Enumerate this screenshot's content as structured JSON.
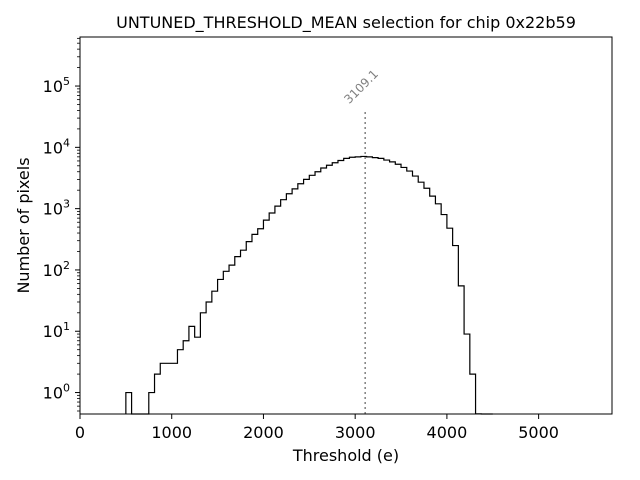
{
  "chart_data": {
    "type": "histogram",
    "title": "UNTUNED_THRESHOLD_MEAN selection for chip 0x22b59",
    "xlabel": "Threshold (e)",
    "ylabel": "Number of pixels",
    "xlim": [
      0,
      5800
    ],
    "ylog_lim": [
      -0.35,
      5.8
    ],
    "x_ticks": [
      {
        "value": 0,
        "label": "0"
      },
      {
        "value": 1000,
        "label": "1000"
      },
      {
        "value": 2000,
        "label": "2000"
      },
      {
        "value": 3000,
        "label": "3000"
      },
      {
        "value": 4000,
        "label": "4000"
      },
      {
        "value": 5000,
        "label": "5000"
      }
    ],
    "y_ticks": [
      {
        "exp": 0,
        "base": "10",
        "sup": "0"
      },
      {
        "exp": 1,
        "base": "10",
        "sup": "1"
      },
      {
        "exp": 2,
        "base": "10",
        "sup": "2"
      },
      {
        "exp": 3,
        "base": "10",
        "sup": "3"
      },
      {
        "exp": 4,
        "base": "10",
        "sup": "4"
      },
      {
        "exp": 5,
        "base": "10",
        "sup": "5"
      }
    ],
    "bin_width": 62.5,
    "bin_starts": [
      500,
      562.5,
      625,
      687.5,
      750,
      812.5,
      875,
      937.5,
      1000,
      1062.5,
      1125,
      1187.5,
      1250,
      1312.5,
      1375,
      1437.5,
      1500,
      1562.5,
      1625,
      1687.5,
      1750,
      1812.5,
      1875,
      1937.5,
      2000,
      2062.5,
      2125,
      2187.5,
      2250,
      2312.5,
      2375,
      2437.5,
      2500,
      2562.5,
      2625,
      2687.5,
      2750,
      2812.5,
      2875,
      2937.5,
      3000,
      3062.5,
      3125,
      3187.5,
      3250,
      3312.5,
      3375,
      3437.5,
      3500,
      3562.5,
      3625,
      3687.5,
      3750,
      3812.5,
      3875,
      3937.5,
      4000,
      4062.5,
      4125,
      4187.5,
      4250,
      4312.5,
      4375,
      4437.5
    ],
    "counts": [
      1,
      0,
      0,
      0,
      1,
      2,
      3,
      3,
      3,
      5,
      7,
      12,
      8,
      20,
      30,
      45,
      70,
      95,
      120,
      165,
      210,
      290,
      380,
      470,
      650,
      850,
      1100,
      1400,
      1750,
      2100,
      2550,
      3000,
      3500,
      4000,
      4600,
      5100,
      5600,
      6100,
      6600,
      6900,
      7000,
      7100,
      7000,
      6800,
      6600,
      6200,
      5800,
      5300,
      4700,
      4100,
      3400,
      2700,
      2150,
      1600,
      1200,
      800,
      480,
      250,
      55,
      9,
      2,
      0.45,
      0.055,
      0.0
    ],
    "vline": {
      "x": 3109.1,
      "label": "3109.1",
      "top_count": 40000
    },
    "colors": {
      "line": "#000000",
      "vline": "#808080",
      "annotation": "#808080"
    }
  }
}
